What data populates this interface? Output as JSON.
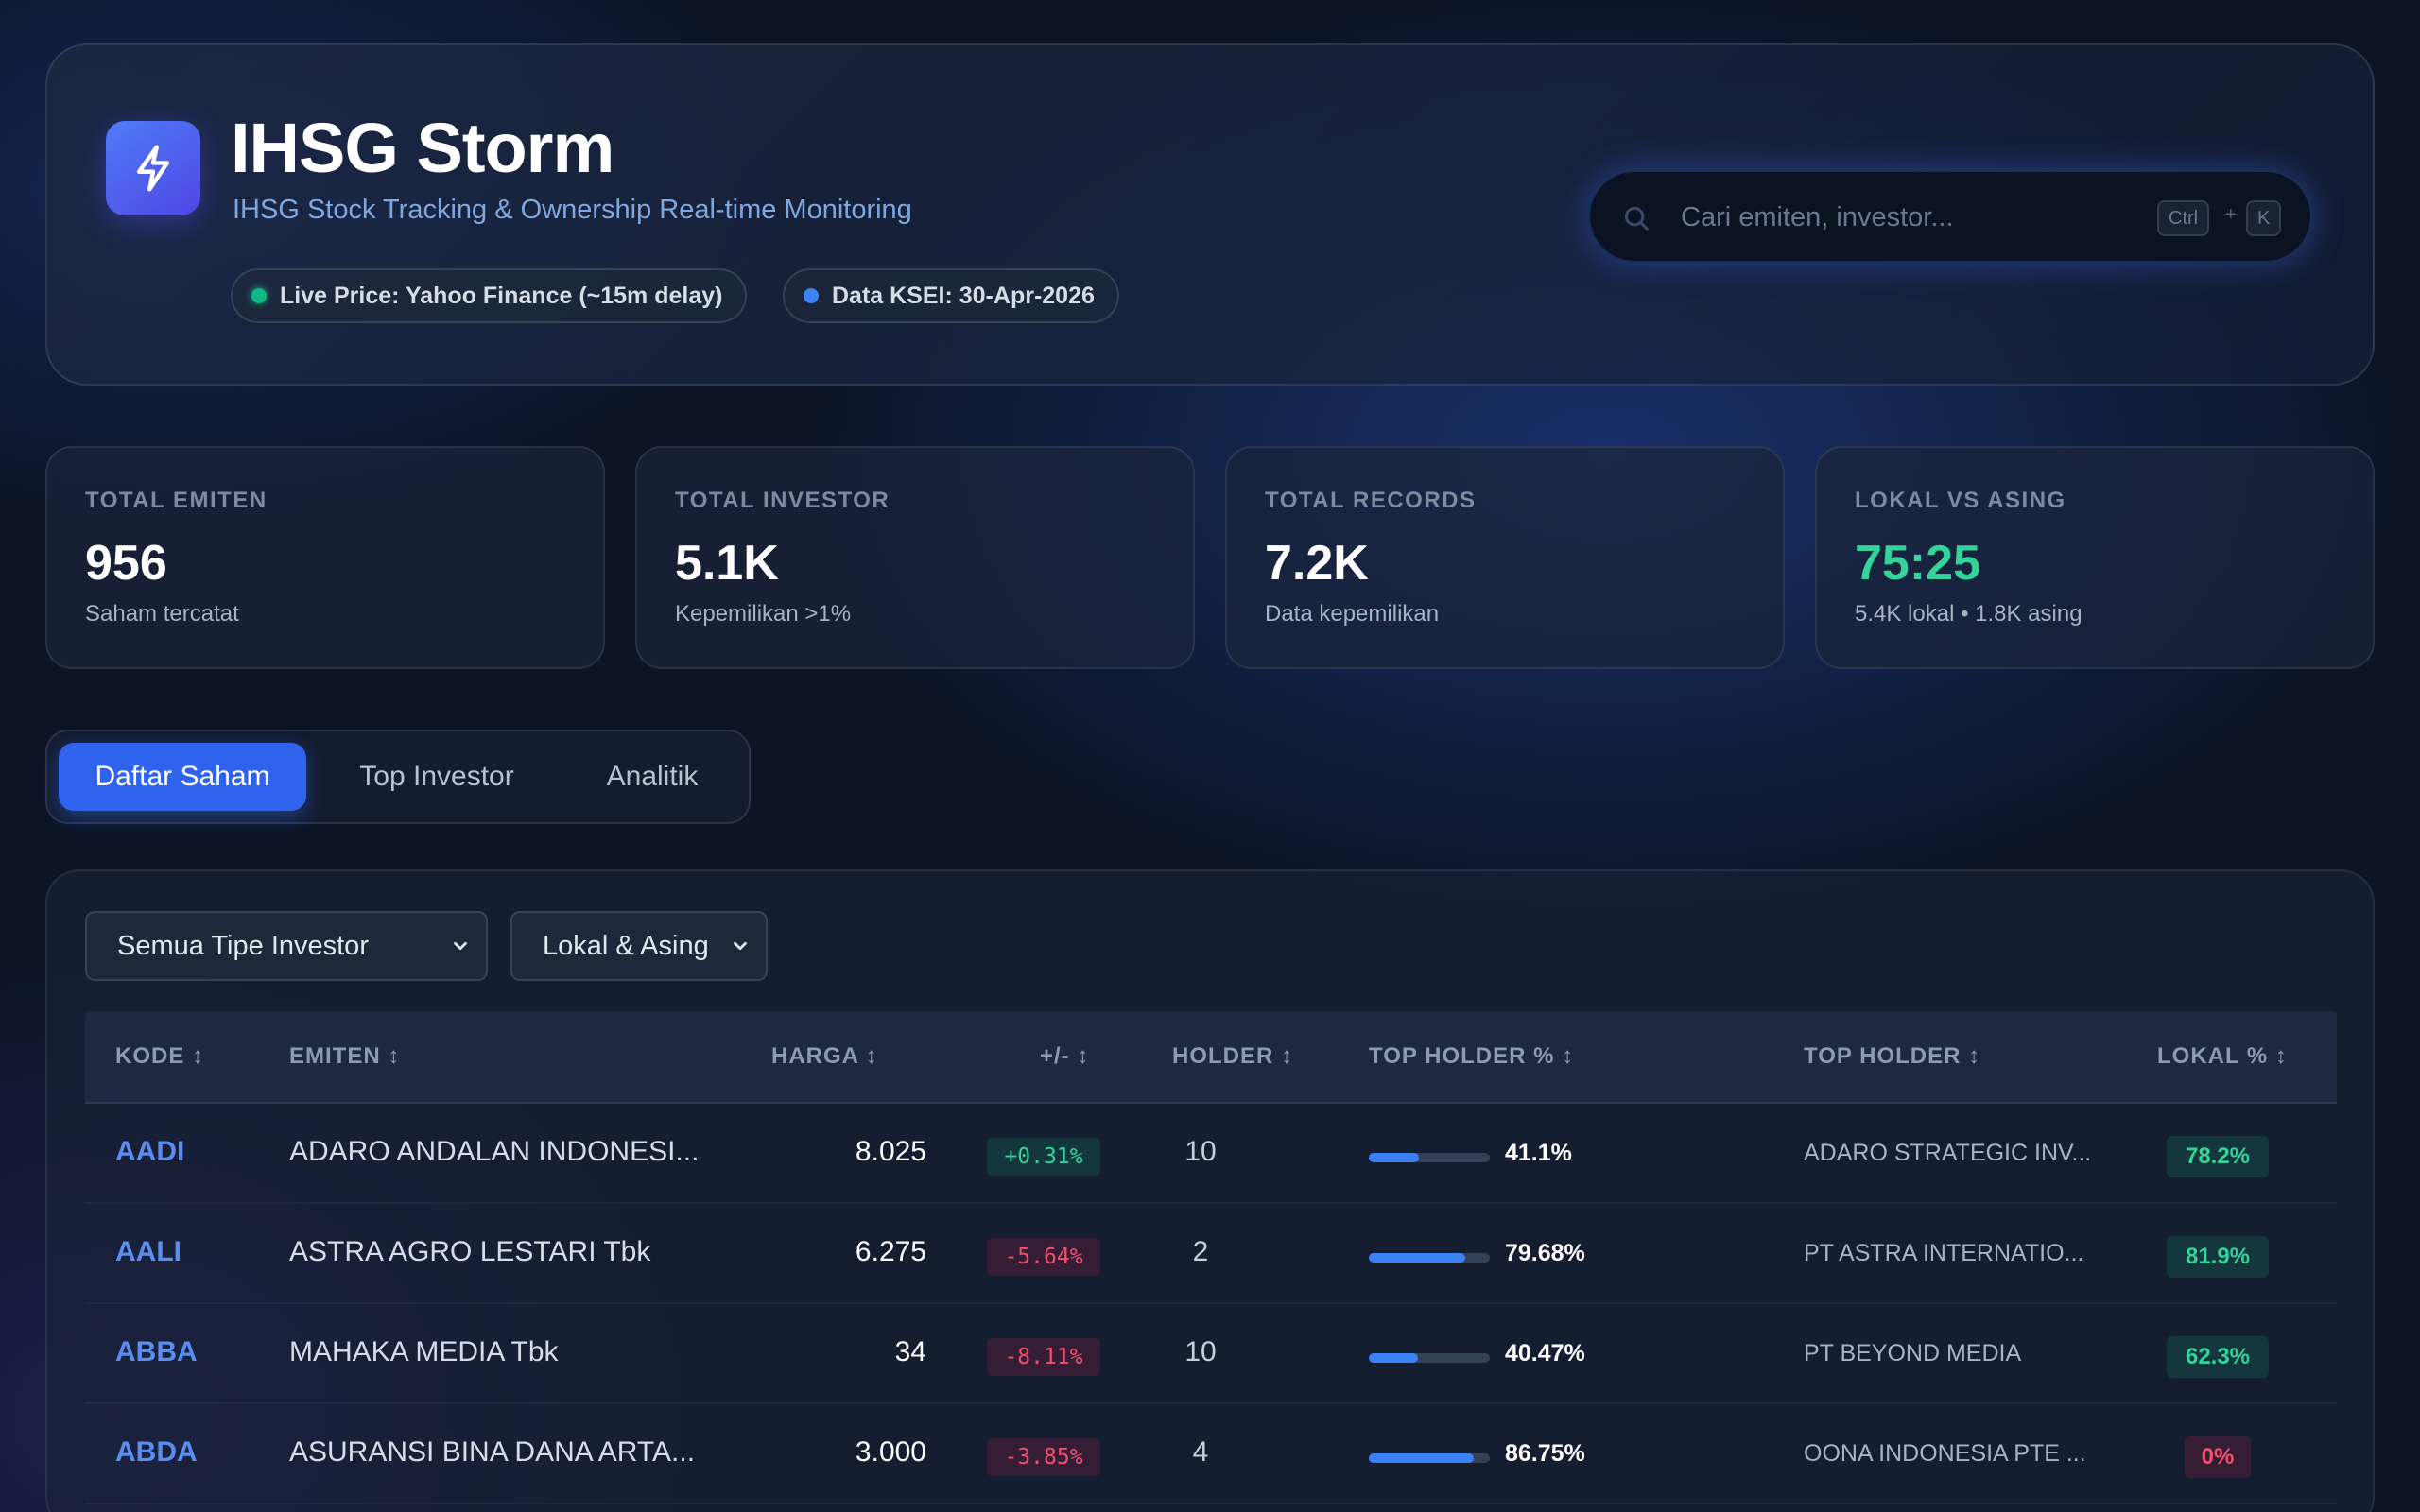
{
  "header": {
    "title": "IHSG Storm",
    "subtitle": "IHSG Stock Tracking & Ownership Real-time Monitoring",
    "logo_icon": "lightning-bolt-icon",
    "badges": [
      {
        "label": "Live Price: Yahoo Finance (~15m delay)",
        "dot_color": "#10b981"
      },
      {
        "label": "Data KSEI: 30-Apr-2026",
        "dot_color": "#3b82f6"
      }
    ],
    "search": {
      "placeholder": "Cari emiten, investor...",
      "shortcut_mod": "Ctrl",
      "shortcut_plus": "+",
      "shortcut_key": "K"
    }
  },
  "stats": [
    {
      "label": "TOTAL EMITEN",
      "value": "956",
      "sub": "Saham tercatat"
    },
    {
      "label": "TOTAL INVESTOR",
      "value": "5.1K",
      "sub": "Kepemilikan >1%"
    },
    {
      "label": "TOTAL RECORDS",
      "value": "7.2K",
      "sub": "Data kepemilikan"
    },
    {
      "label": "LOKAL VS ASING",
      "value": "75:25",
      "sub": "5.4K lokal • 1.8K asing",
      "value_color": "#34d399"
    }
  ],
  "tabs": [
    {
      "label": "Daftar Saham",
      "active": true
    },
    {
      "label": "Top Investor",
      "active": false
    },
    {
      "label": "Analitik",
      "active": false
    }
  ],
  "filters": {
    "investor_type": "Semua Tipe Investor",
    "scope": "Lokal & Asing"
  },
  "table": {
    "columns": [
      "KODE ↕",
      "EMITEN ↕",
      "HARGA ↕",
      "+/- ↕",
      "HOLDER ↕",
      "TOP HOLDER % ↕",
      "TOP HOLDER ↕",
      "LOKAL % ↕"
    ],
    "rows": [
      {
        "kode": "AADI",
        "emiten": "ADARO ANDALAN INDONESI...",
        "harga": "8.025",
        "change": "+0.31%",
        "direction": "up",
        "holder": "10",
        "top_pct": "41.1%",
        "top_pct_value": 0.411,
        "top_holder": "ADARO STRATEGIC INV...",
        "lokal": "78.2%",
        "lokal_status": "green"
      },
      {
        "kode": "AALI",
        "emiten": "ASTRA AGRO LESTARI Tbk",
        "harga": "6.275",
        "change": "-5.64%",
        "direction": "down",
        "holder": "2",
        "top_pct": "79.68%",
        "top_pct_value": 0.7968,
        "top_holder": "PT ASTRA INTERNATIO...",
        "lokal": "81.9%",
        "lokal_status": "green"
      },
      {
        "kode": "ABBA",
        "emiten": "MAHAKA MEDIA Tbk",
        "harga": "34",
        "change": "-8.11%",
        "direction": "down",
        "holder": "10",
        "top_pct": "40.47%",
        "top_pct_value": 0.4047,
        "top_holder": "PT BEYOND MEDIA",
        "lokal": "62.3%",
        "lokal_status": "green"
      },
      {
        "kode": "ABDA",
        "emiten": "ASURANSI BINA DANA ARTA...",
        "harga": "3.000",
        "change": "-3.85%",
        "direction": "down",
        "holder": "4",
        "top_pct": "86.75%",
        "top_pct_value": 0.8675,
        "top_holder": "OONA INDONESIA PTE ...",
        "lokal": "0%",
        "lokal_status": "red"
      }
    ]
  }
}
